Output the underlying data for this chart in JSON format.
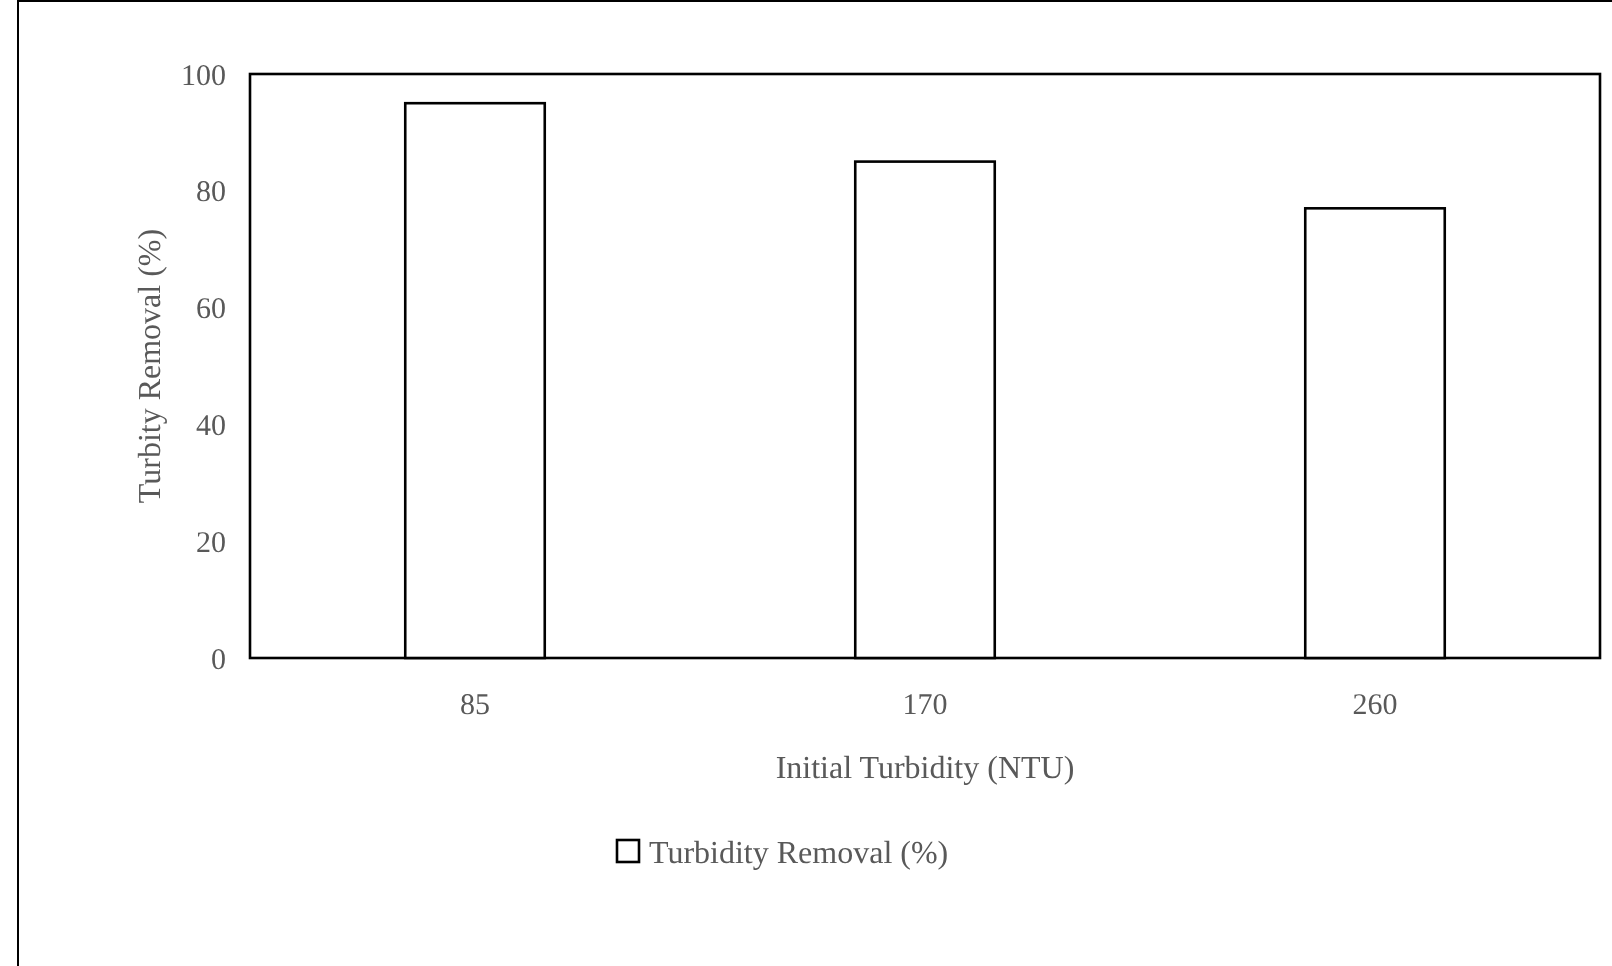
{
  "chart_data": {
    "type": "bar",
    "xlabel": "Initial Turbidity (NTU)",
    "ylabel": "Turbity Removal (%)",
    "categories": [
      "85",
      "170",
      "260"
    ],
    "series": [
      {
        "name": "Turbidity Removal (%)",
        "color": "#ffffff",
        "values": [
          95,
          85,
          77
        ]
      }
    ],
    "ylim": [
      0,
      100
    ],
    "yticks": [
      0,
      20,
      40,
      60,
      80,
      100
    ],
    "grid": false,
    "legend": "bottom"
  }
}
